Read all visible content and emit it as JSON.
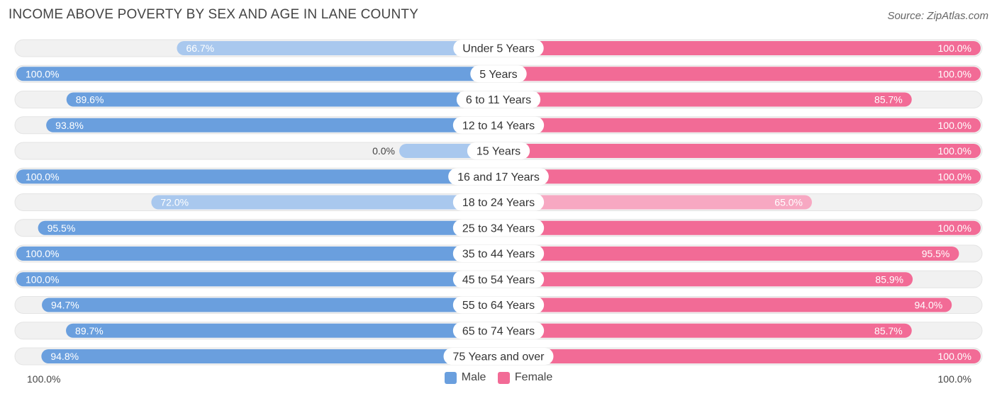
{
  "chart_data": {
    "type": "bar",
    "orientation": "horizontal-diverging",
    "title": "INCOME ABOVE POVERTY BY SEX AND AGE IN LANE COUNTY",
    "source": "Source: ZipAtlas.com",
    "categories": [
      "Under 5 Years",
      "5 Years",
      "6 to 11 Years",
      "12 to 14 Years",
      "15 Years",
      "16 and 17 Years",
      "18 to 24 Years",
      "25 to 34 Years",
      "35 to 44 Years",
      "45 to 54 Years",
      "55 to 64 Years",
      "65 to 74 Years",
      "75 Years and over"
    ],
    "series": [
      {
        "name": "Male",
        "values": [
          66.7,
          100.0,
          89.6,
          93.8,
          0.0,
          100.0,
          72.0,
          95.5,
          100.0,
          100.0,
          94.7,
          89.7,
          94.8
        ],
        "labels": [
          "66.7%",
          "100.0%",
          "89.6%",
          "93.8%",
          "0.0%",
          "100.0%",
          "72.0%",
          "95.5%",
          "100.0%",
          "100.0%",
          "94.7%",
          "89.7%",
          "94.8%"
        ]
      },
      {
        "name": "Female",
        "values": [
          100.0,
          100.0,
          85.7,
          100.0,
          100.0,
          100.0,
          65.0,
          100.0,
          95.5,
          85.9,
          94.0,
          85.7,
          100.0
        ],
        "labels": [
          "100.0%",
          "100.0%",
          "85.7%",
          "100.0%",
          "100.0%",
          "100.0%",
          "65.0%",
          "100.0%",
          "95.5%",
          "85.9%",
          "94.0%",
          "85.7%",
          "100.0%"
        ]
      }
    ],
    "axis_left_label": "100.0%",
    "axis_right_label": "100.0%",
    "xlim": [
      0,
      100
    ],
    "legend": [
      "Male",
      "Female"
    ],
    "legend_position": "bottom-center",
    "colors": {
      "male": "#6a9fde",
      "male_light": "#a9c8ee",
      "female": "#f26b96",
      "female_light": "#f7a8c2",
      "track": "#f1f1f1"
    }
  }
}
